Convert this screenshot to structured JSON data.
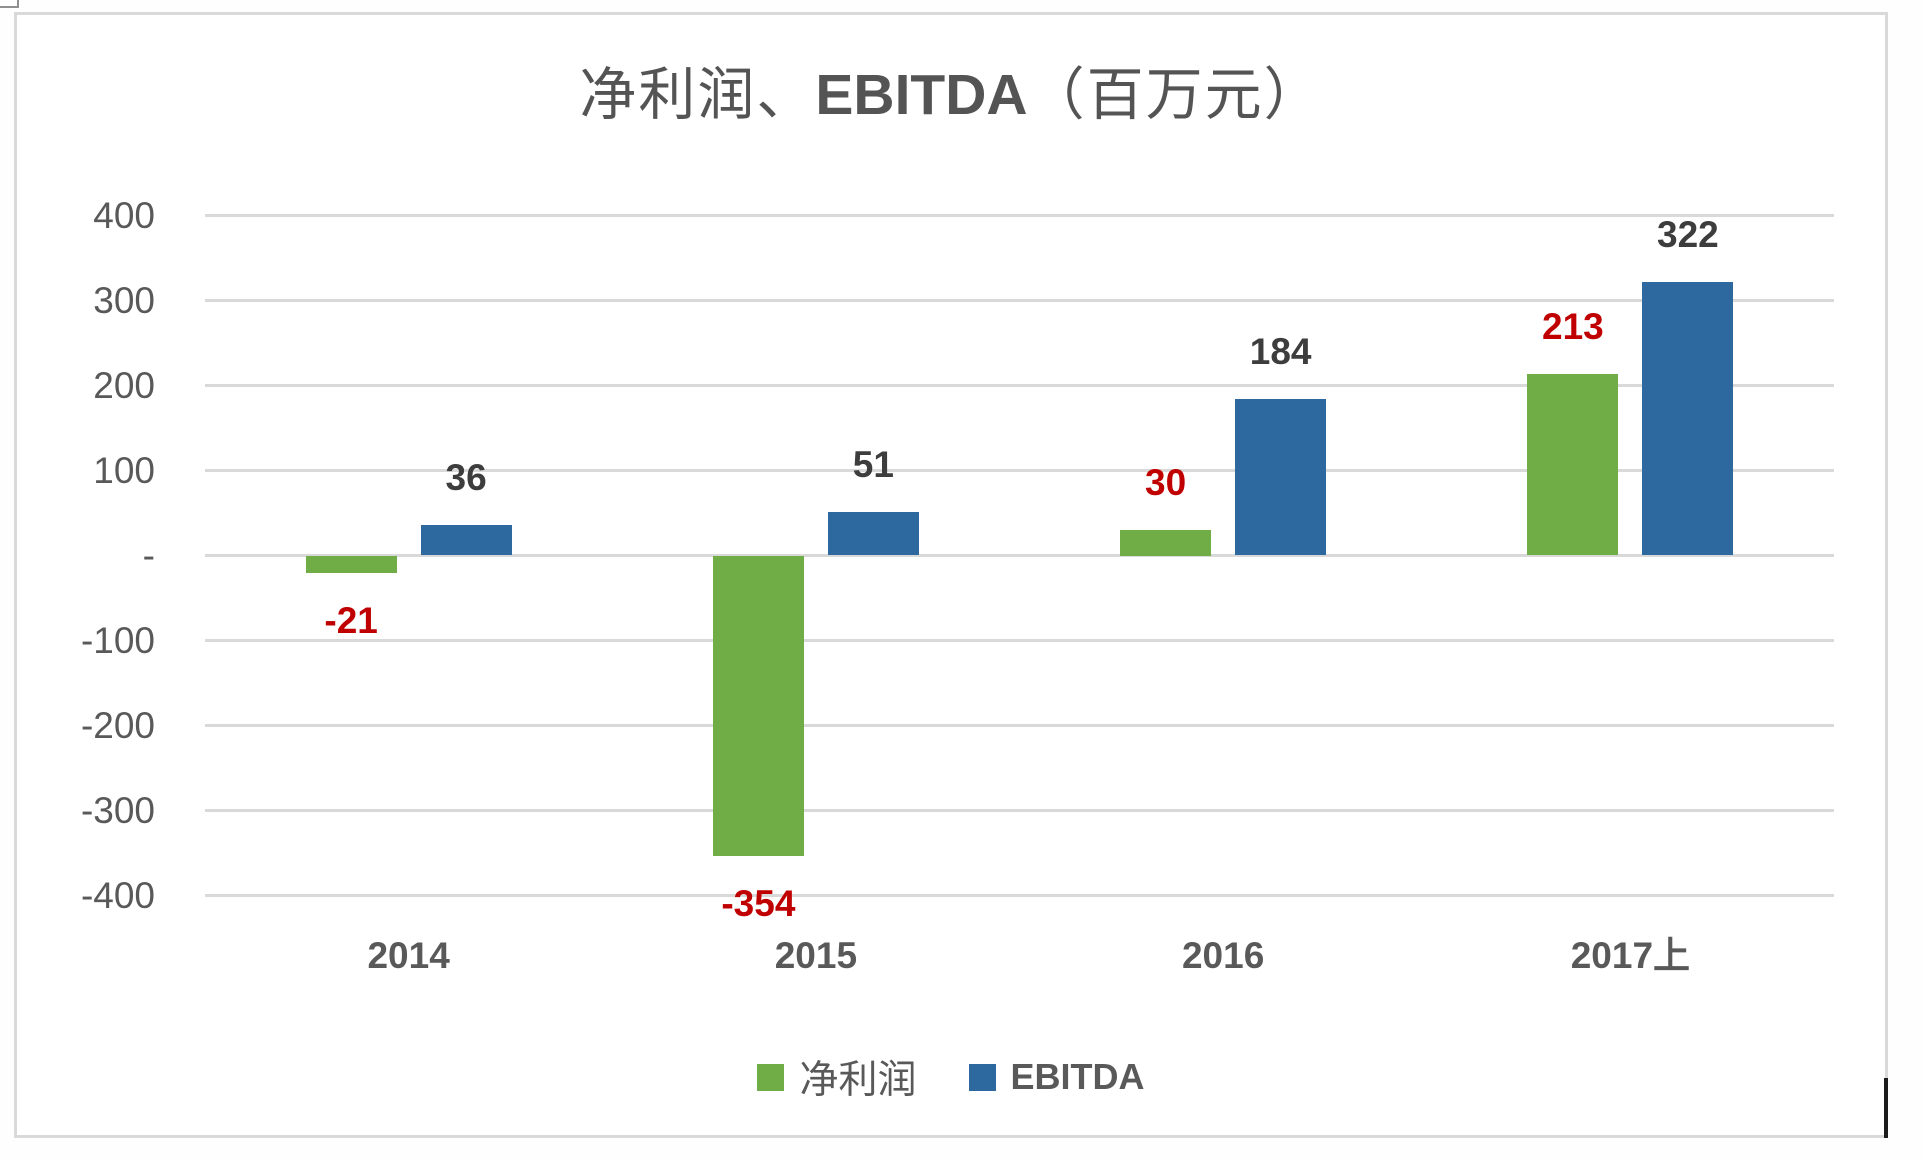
{
  "title": {
    "full": "净利润、EBITDA（百万元）",
    "cjk_prefix": "净利润、",
    "latin": "EBITDA",
    "cjk_suffix": "（百万元）"
  },
  "colors": {
    "green": "#71ad47",
    "blue": "#2d689e",
    "red_label": "#c00000",
    "dark_label": "#3d3d3d",
    "axis_text": "#595959",
    "gridline": "#d9d9d9"
  },
  "chart_data": {
    "type": "bar",
    "title": "净利润、EBITDA（百万元）",
    "categories": [
      "2014",
      "2015",
      "2016",
      "2017上"
    ],
    "series": [
      {
        "name": "净利润",
        "color_key": "green",
        "label_color_key": "red_label",
        "values": [
          -21,
          -354,
          30,
          213
        ],
        "value_labels": [
          "-21",
          "-354",
          "30",
          "213"
        ]
      },
      {
        "name": "EBITDA",
        "color_key": "blue",
        "label_color_key": "dark_label",
        "values": [
          36,
          51,
          184,
          322
        ],
        "value_labels": [
          "36",
          "51",
          "184",
          "322"
        ]
      }
    ],
    "y_axis": {
      "min": -400,
      "max": 400,
      "ticks": [
        {
          "value": 400,
          "label": "400"
        },
        {
          "value": 300,
          "label": "300"
        },
        {
          "value": 200,
          "label": "200"
        },
        {
          "value": 100,
          "label": "100"
        },
        {
          "value": 0,
          "label": "-"
        },
        {
          "value": -100,
          "label": "-100"
        },
        {
          "value": -200,
          "label": "-200"
        },
        {
          "value": -300,
          "label": "-300"
        },
        {
          "value": -400,
          "label": "-400"
        }
      ]
    },
    "grid": true,
    "legend_position": "bottom"
  },
  "legend": {
    "items": [
      {
        "label": "净利润",
        "color_key": "green"
      },
      {
        "label": "EBITDA",
        "color_key": "blue"
      }
    ]
  }
}
